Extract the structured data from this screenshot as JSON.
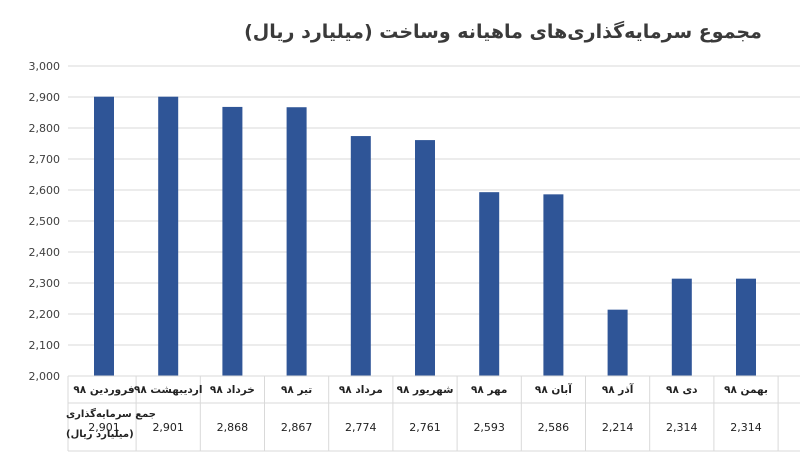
{
  "chart_data": {
    "type": "bar",
    "title": "مجموع سرمایه‌گذاری‌های ماهیانه وساخت (میلیارد ریال)",
    "categories": [
      "فروردین ۹۸",
      "اردیبهشت ۹۸",
      "خرداد ۹۸",
      "تیر ۹۸",
      "مرداد ۹۸",
      "شهریور ۹۸",
      "مهر ۹۸",
      "آبان ۹۸",
      "آذر ۹۸",
      "دی ۹۸",
      "بهمن ۹۸"
    ],
    "series": [
      {
        "name": "جمع سرمایه‌گذاری (میلیارد ریال)",
        "values": [
          2901,
          2901,
          2868,
          2867,
          2774,
          2761,
          2593,
          2586,
          2214,
          2314,
          2314
        ]
      }
    ],
    "value_labels": [
      "2,901",
      "2,901",
      "2,868",
      "2,867",
      "2,774",
      "2,761",
      "2,593",
      "2,586",
      "2,214",
      "2,314",
      "2,314"
    ],
    "y_ticks": [
      "2,000",
      "2,100",
      "2,200",
      "2,300",
      "2,400",
      "2,500",
      "2,600",
      "2,700",
      "2,800",
      "2,900",
      "3,000"
    ],
    "data_table_row_label": [
      "جمع سرمایه‌گذاری",
      "(میلیارد ریال)"
    ],
    "ylim": [
      2000,
      3000
    ],
    "grid": true,
    "legend": "none",
    "bar_color": "#2F5597",
    "grid_color": "#D9D9D9"
  }
}
